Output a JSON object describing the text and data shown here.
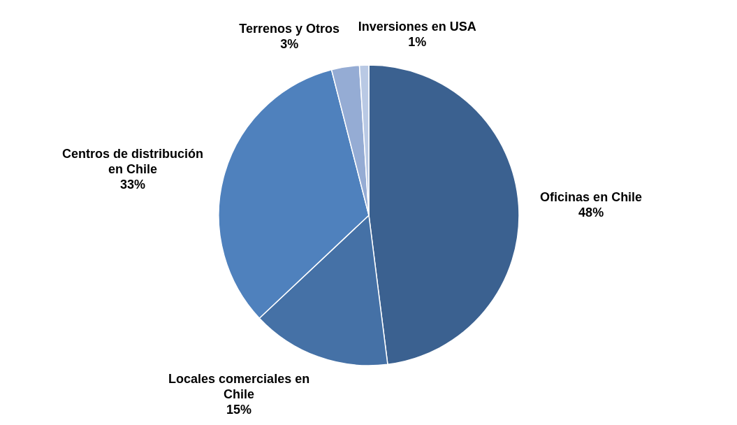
{
  "chart_data": {
    "type": "pie",
    "categories": [
      "Oficinas en Chile",
      "Locales comerciales en Chile",
      "Centros de distribución en Chile",
      "Terrenos y Otros",
      "Inversiones en USA"
    ],
    "values": [
      48,
      15,
      33,
      3,
      1
    ],
    "value_labels": [
      "48%",
      "15%",
      "33%",
      "3%",
      "1%"
    ],
    "colors": [
      "#3b6190",
      "#4571a6",
      "#4f81bd",
      "#95acd4",
      "#b9c9e4"
    ]
  }
}
